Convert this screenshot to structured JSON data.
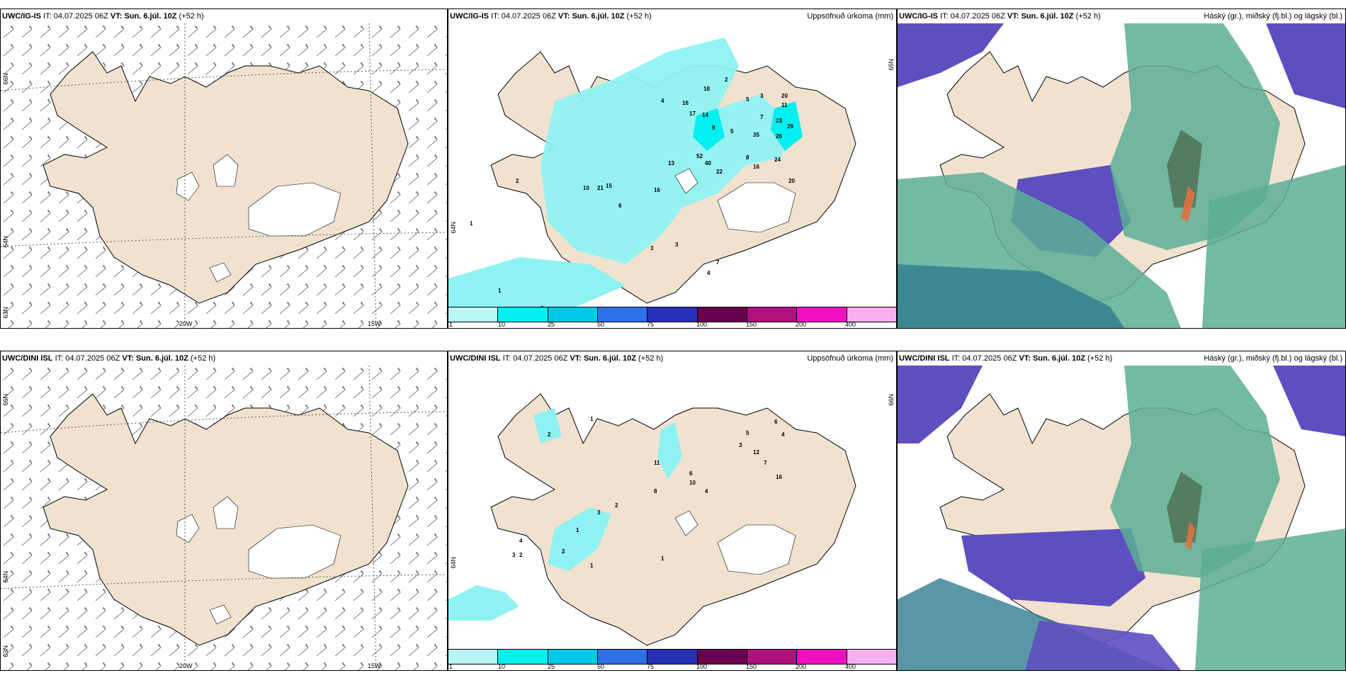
{
  "rows": [
    {
      "model": "UWC/IG-IS",
      "it_label": "IT:",
      "it_value": "04.07.2025 06Z",
      "vt_label": "VT:",
      "vt_value": "Sun. 6.júl. 10Z",
      "lead": "(+52 h)",
      "wind": {
        "lat_labels": [
          "66N",
          "64N",
          "63N"
        ],
        "lon_labels": [
          "20W",
          "15W"
        ]
      },
      "precip": {
        "title": "Uppsöfnuð úrkoma (mm)",
        "lat_labels": [
          "65N",
          "64N"
        ],
        "values": [
          "18",
          "2",
          "5",
          "3",
          "20",
          "11",
          "16",
          "4",
          "17",
          "14",
          "7",
          "23",
          "29",
          "9",
          "5",
          "35",
          "26",
          "52",
          "40",
          "22",
          "24",
          "8",
          "16",
          "20",
          "13",
          "21",
          "15",
          "16",
          "6",
          "10",
          "2",
          "3",
          "3",
          "4",
          "7",
          "1",
          "1",
          "2",
          "2",
          "1"
        ]
      },
      "clouds": {
        "title": "Háský (gr.), miðský (fj.bl.) og lágský (bl.)"
      }
    },
    {
      "model": "UWC/DINI ISL",
      "it_label": "IT:",
      "it_value": "04.07.2025 06Z",
      "vt_label": "VT:",
      "vt_value": "Sun. 6.júl. 10Z",
      "lead": "(+52 h)",
      "wind": {
        "lat_labels": [
          "66N",
          "64N",
          "63N"
        ],
        "lon_labels": [
          "20W",
          "15W"
        ]
      },
      "precip": {
        "title": "Uppsöfnuð úrkoma (mm)",
        "lat_labels": [
          "66N",
          "64N"
        ],
        "values": [
          "2",
          "1",
          "6",
          "4",
          "5",
          "3",
          "12",
          "7",
          "11",
          "16",
          "6",
          "10",
          "4",
          "8",
          "2",
          "3",
          "1",
          "1",
          "2",
          "2",
          "1",
          "4",
          "3"
        ]
      },
      "clouds": {
        "title": "Háský (gr.), miðský (fj.bl.) og lágský (bl.)"
      }
    }
  ],
  "colorbar": {
    "labels": [
      "1",
      "10",
      "25",
      "50",
      "75",
      "100",
      "150",
      "200",
      "400"
    ],
    "colors": [
      "#b8f5f5",
      "#00f0f0",
      "#00c8e8",
      "#3070e8",
      "#2830b8",
      "#6a0050",
      "#b0107e",
      "#f010c0",
      "#f8b0f0"
    ]
  },
  "colors": {
    "land": "#f1e2cf",
    "precip": "#8ff2f2",
    "high_cloud": "#5cae95",
    "mid_cloud": "#5d4fc0",
    "low_cloud": "#3f8f8a"
  }
}
